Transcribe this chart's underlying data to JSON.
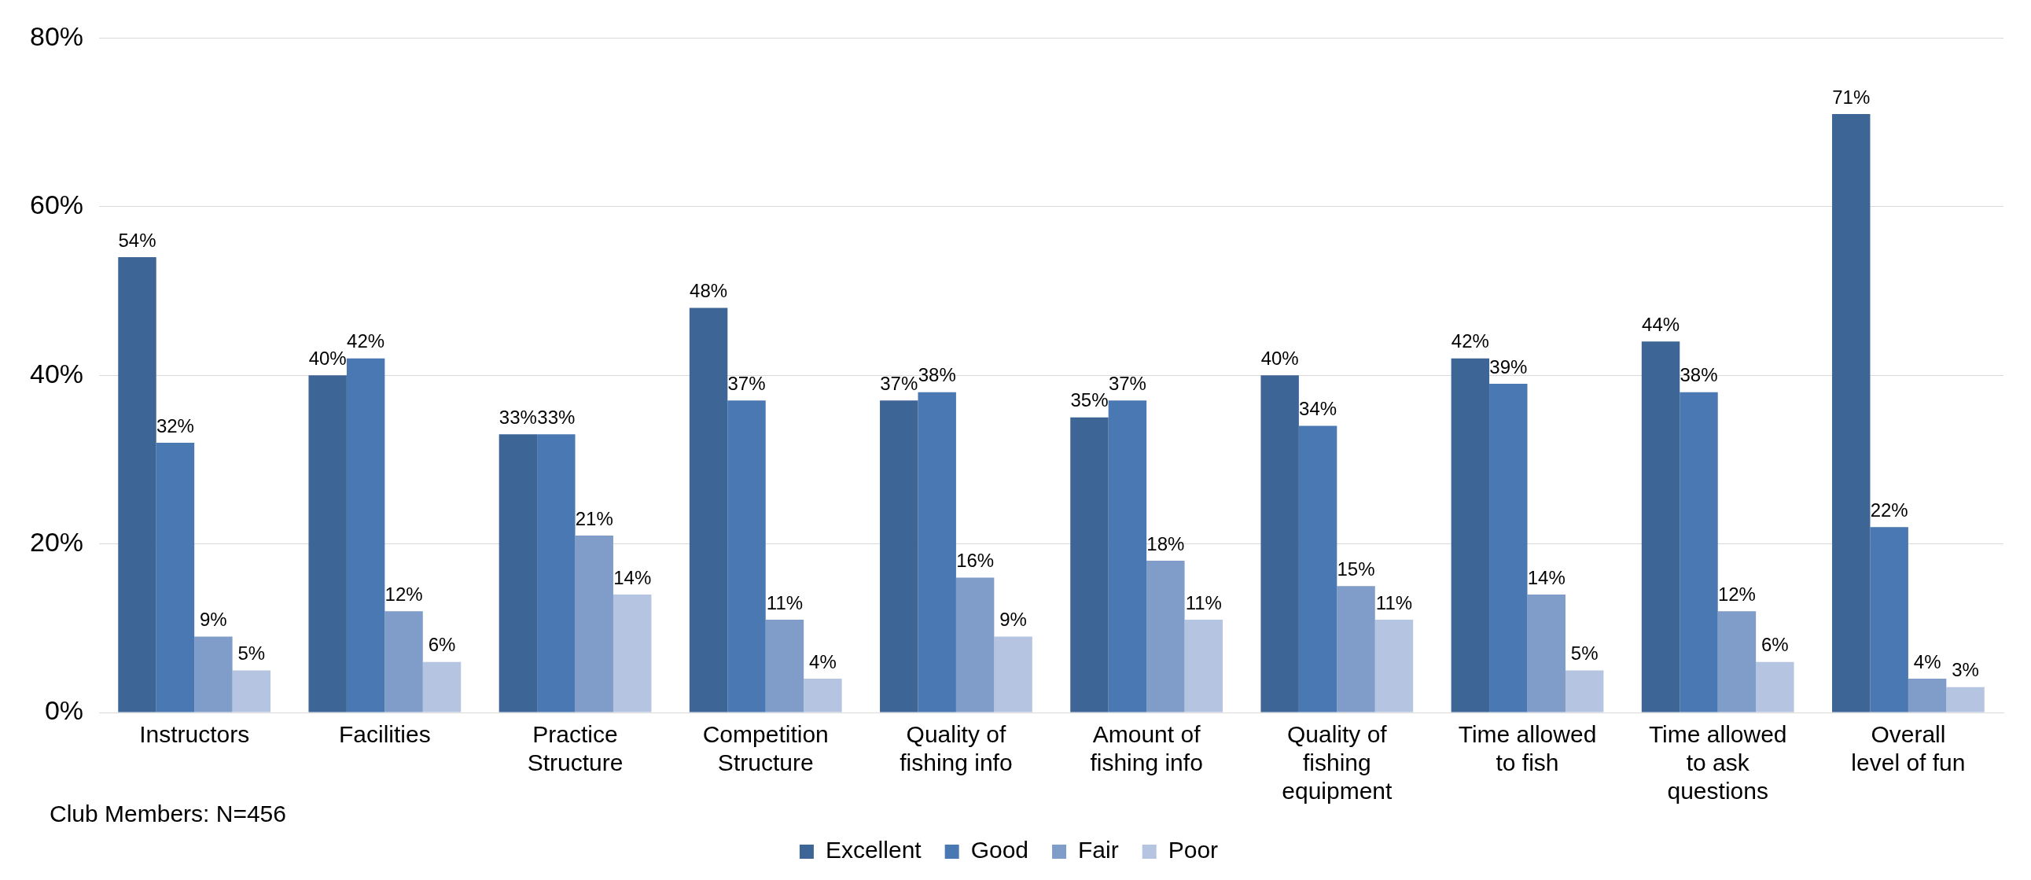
{
  "chart_data": {
    "type": "bar",
    "categories": [
      "Instructors",
      "Facilities",
      "Practice Structure",
      "Competition Structure",
      "Quality of fishing info",
      "Amount of fishing info",
      "Quality of fishing equipment",
      "Time allowed to fish",
      "Time allowed to ask questions",
      "Overall level of fun"
    ],
    "series": [
      {
        "name": "Excellent",
        "color": "#3d6595",
        "values": [
          54,
          40,
          33,
          48,
          37,
          35,
          40,
          42,
          44,
          71
        ],
        "value_labels": [
          "54%",
          "40%",
          "33%",
          "48%",
          "37%",
          "35%",
          "40%",
          "42%",
          "44%",
          "71%"
        ]
      },
      {
        "name": "Good",
        "color": "#4a78b2",
        "values": [
          32,
          42,
          33,
          37,
          38,
          37,
          34,
          39,
          38,
          22
        ],
        "value_labels": [
          "32%",
          "42%",
          "33%",
          "37%",
          "38%",
          "37%",
          "34%",
          "39%",
          "38%",
          "22%"
        ]
      },
      {
        "name": "Fair",
        "color": "#809dc9",
        "values": [
          9,
          12,
          21,
          11,
          16,
          18,
          15,
          14,
          12,
          4
        ],
        "value_labels": [
          "9%",
          "12%",
          "21%",
          "11%",
          "16%",
          "18%",
          "15%",
          "14%",
          "12%",
          "4%"
        ]
      },
      {
        "name": "Poor",
        "color": "#b5c4e0",
        "values": [
          5,
          6,
          14,
          4,
          9,
          11,
          11,
          5,
          6,
          3
        ],
        "value_labels": [
          "5%",
          "6%",
          "14%",
          "4%",
          "9%",
          "11%",
          "11%",
          "5%",
          "6%",
          "3%"
        ]
      }
    ],
    "ylim": [
      0,
      80
    ],
    "yticks": [
      {
        "value": 0,
        "label": "0%"
      },
      {
        "value": 20,
        "label": "20%"
      },
      {
        "value": 40,
        "label": "40%"
      },
      {
        "value": 60,
        "label": "60%"
      },
      {
        "value": 80,
        "label": "80%"
      }
    ],
    "grid": "y",
    "legend": "bottom",
    "annotations": [
      "Club Members: N=456"
    ]
  }
}
